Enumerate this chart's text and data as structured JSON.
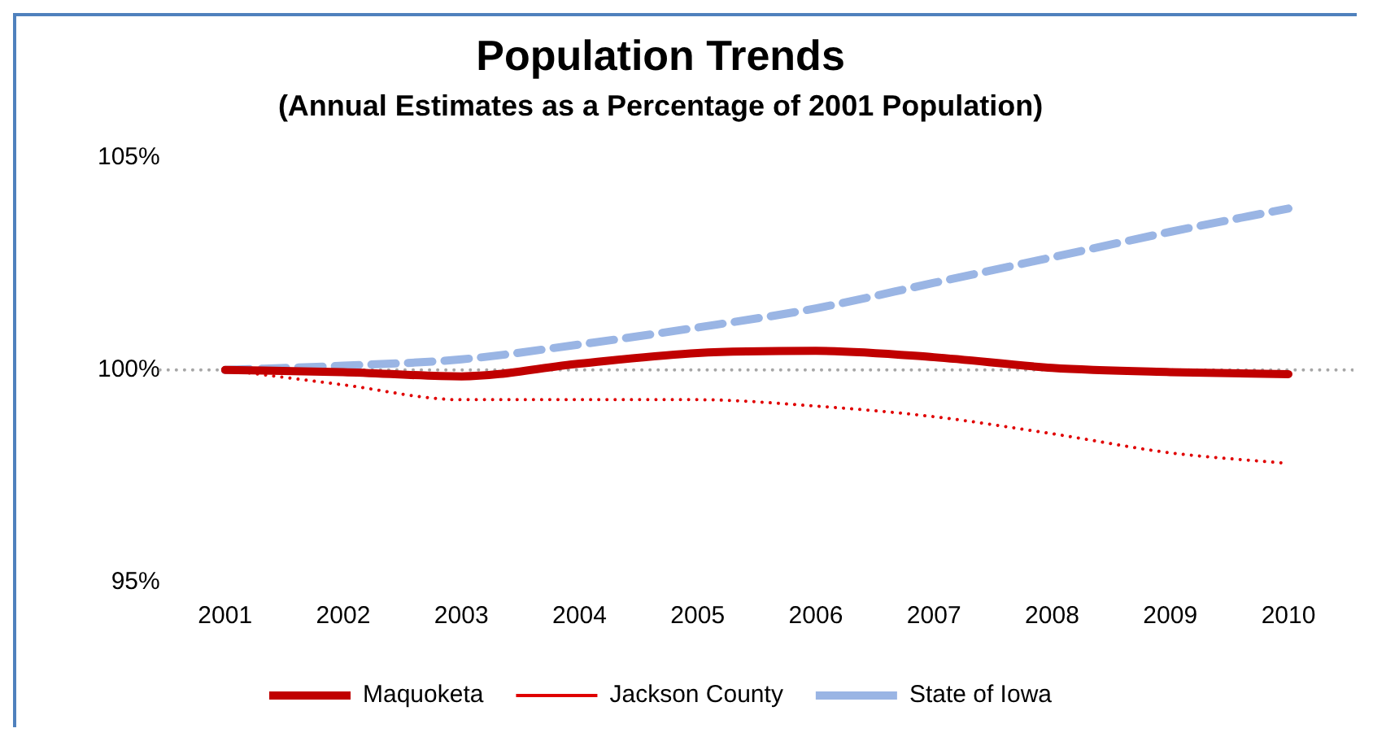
{
  "chart_data": {
    "type": "line",
    "title": "Population Trends",
    "subtitle": "(Annual Estimates as a Percentage of 2001 Population)",
    "categories": [
      "2001",
      "2002",
      "2003",
      "2004",
      "2005",
      "2006",
      "2007",
      "2008",
      "2009",
      "2010"
    ],
    "series": [
      {
        "name": "Maquoketa",
        "color": "#c00000",
        "line_style": "solid",
        "values": [
          100,
          99.95,
          99.85,
          100.15,
          100.4,
          100.45,
          100.3,
          100.05,
          99.95,
          99.9
        ]
      },
      {
        "name": "Jackson County",
        "color": "#e00000",
        "line_style": "dotted",
        "values": [
          100,
          99.65,
          99.3,
          99.3,
          99.3,
          99.15,
          98.9,
          98.5,
          98.05,
          97.8
        ]
      },
      {
        "name": "State of Iowa",
        "color": "#9ab5e4",
        "line_style": "dashed",
        "values": [
          100,
          100.1,
          100.25,
          100.6,
          101.0,
          101.45,
          102.05,
          102.65,
          103.25,
          103.8
        ]
      }
    ],
    "ylim": [
      95,
      105
    ],
    "yticks": [
      {
        "value": 95,
        "label": "95%"
      },
      {
        "value": 100,
        "label": "100%"
      },
      {
        "value": 105,
        "label": "105%"
      }
    ],
    "ref_lines": [
      {
        "axis": "y",
        "value": 100,
        "color": "#a6a6a6",
        "line_style": "dotted"
      }
    ],
    "grid": false,
    "legend": "bottom",
    "marker": "none"
  }
}
